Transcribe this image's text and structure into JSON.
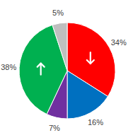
{
  "chart_data": {
    "type": "pie",
    "values": [
      34,
      16,
      7,
      38,
      5
    ],
    "value_labels": [
      "34%",
      "16%",
      "7%",
      "38%",
      "5%"
    ],
    "colors": [
      "#ff0000",
      "#0070c0",
      "#7030a0",
      "#00b050",
      "#bfbfbf"
    ],
    "data_labels": true
  }
}
